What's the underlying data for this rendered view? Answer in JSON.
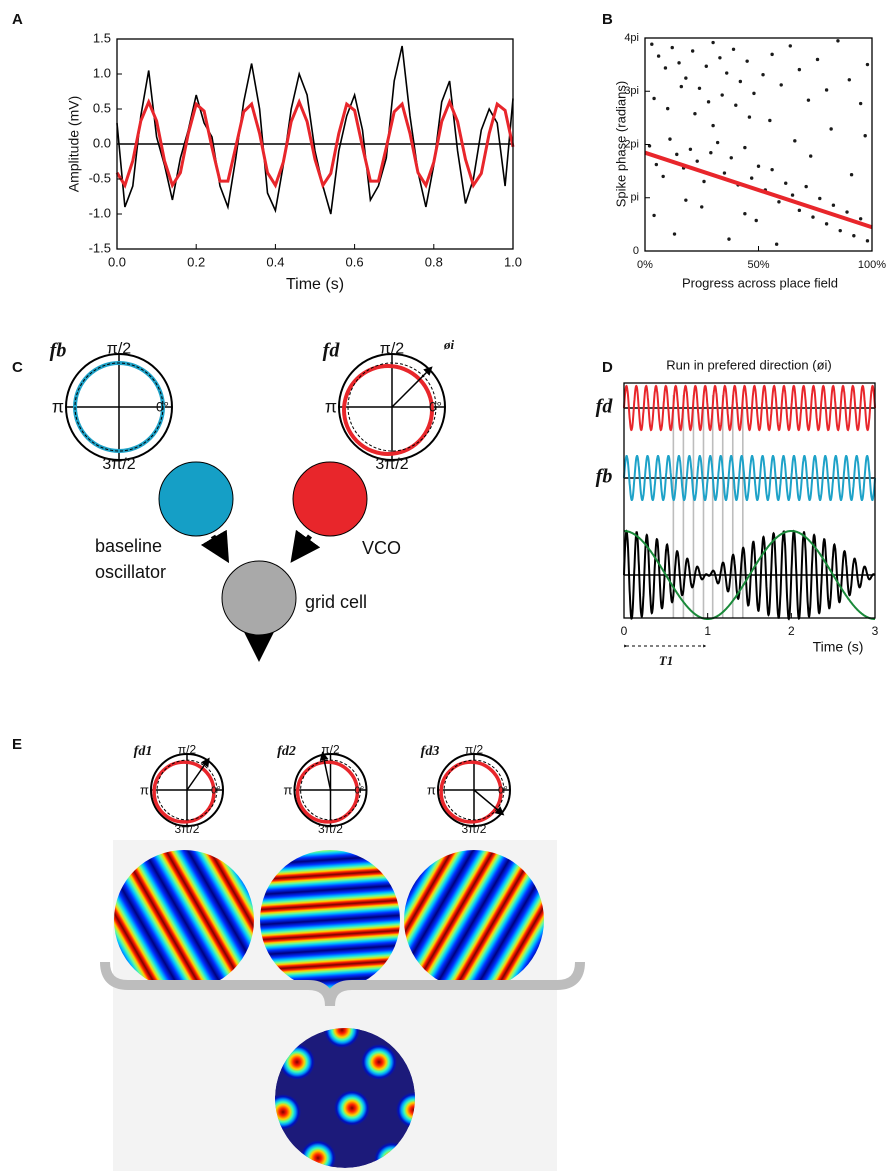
{
  "chart_data": [
    {
      "type": "line",
      "label": "A",
      "ylabel": "Amplitude (mV)",
      "xlabel": "Time (s)",
      "x": [
        0,
        0.02,
        0.04,
        0.06,
        0.08,
        0.1,
        0.12,
        0.14,
        0.16,
        0.18,
        0.2,
        0.22,
        0.24,
        0.26,
        0.28,
        0.3,
        0.32,
        0.34,
        0.36,
        0.38,
        0.4,
        0.42,
        0.44,
        0.46,
        0.48,
        0.5,
        0.52,
        0.54,
        0.56,
        0.58,
        0.6,
        0.62,
        0.64,
        0.66,
        0.68,
        0.7,
        0.72,
        0.74,
        0.76,
        0.78,
        0.8,
        0.82,
        0.84,
        0.86,
        0.88,
        0.9,
        0.92,
        0.94,
        0.96,
        0.98,
        1
      ],
      "series": [
        {
          "color": "#000000",
          "values": [
            0.3,
            -0.9,
            -0.6,
            0.4,
            1.05,
            0.1,
            -0.3,
            -0.8,
            -0.2,
            0.2,
            0.7,
            0.3,
            0.1,
            -0.6,
            -0.9,
            -0.2,
            0.6,
            1.15,
            0.5,
            -0.7,
            -0.95,
            -0.3,
            0.5,
            1.0,
            0.7,
            -0.1,
            -0.6,
            -1.0,
            -0.1,
            0.4,
            0.7,
            0.2,
            -0.8,
            -0.6,
            -0.2,
            0.9,
            1.4,
            0.4,
            -0.4,
            -0.9,
            -0.3,
            0.6,
            0.9,
            -0.1,
            -0.85,
            -0.5,
            0.2,
            0.5,
            0.3,
            -0.6,
            0.65
          ]
        },
        {
          "color": "#e8262b",
          "values": [
            -0.41,
            -0.59,
            -0.24,
            0.33,
            0.6,
            0.33,
            -0.24,
            -0.59,
            -0.41,
            0.15,
            0.57,
            0.47,
            -0.05,
            -0.53,
            -0.53,
            -0.04,
            0.46,
            0.57,
            0.15,
            -0.41,
            -0.59,
            -0.26,
            0.32,
            0.6,
            0.32,
            -0.22,
            -0.59,
            -0.42,
            0.15,
            0.57,
            0.48,
            -0.04,
            -0.53,
            -0.53,
            -0.05,
            0.46,
            0.57,
            0.15,
            -0.41,
            -0.59,
            -0.26,
            0.32,
            0.6,
            0.32,
            -0.22,
            -0.59,
            -0.42,
            0.15,
            0.57,
            0.48,
            -0.04
          ]
        }
      ],
      "xlim": [
        0,
        1
      ],
      "xticks": [
        {
          "value": 0,
          "label": "0.0"
        },
        0.2,
        0.4,
        0.6,
        0.8,
        {
          "value": 1,
          "label": "1.0"
        }
      ],
      "ylim": [
        -1.5,
        1.5
      ],
      "yticks": [
        -1.5,
        {
          "value": -1,
          "label": "-1.0"
        },
        -0.5,
        {
          "value": 0,
          "label": "0.0"
        },
        0.5,
        {
          "value": 1,
          "label": "1.0"
        },
        1.5
      ]
    },
    {
      "type": "scatter",
      "label": "B",
      "ylabel": "Spike phase (radians)",
      "xlabel": "Progress across place field",
      "color": "#1a1a1a",
      "x": [
        3,
        6,
        9,
        12,
        15,
        18,
        21,
        24,
        27,
        30,
        33,
        36,
        39,
        42,
        45,
        48,
        4,
        10,
        16,
        22,
        28,
        34,
        40,
        46,
        52,
        56,
        60,
        64,
        68,
        72,
        76,
        80,
        85,
        90,
        95,
        98,
        2,
        5,
        8,
        11,
        14,
        17,
        20,
        23,
        26,
        29,
        32,
        35,
        38,
        41,
        44,
        47,
        50,
        53,
        56,
        59,
        62,
        65,
        68,
        71,
        74,
        77,
        80,
        83,
        86,
        89,
        92,
        95,
        98,
        4,
        13,
        25,
        37,
        49,
        58,
        66,
        73,
        82,
        91,
        97,
        30,
        18,
        55,
        44
      ],
      "y": [
        12.2,
        11.5,
        10.8,
        12.0,
        11.1,
        10.2,
        11.8,
        9.6,
        10.9,
        12.3,
        11.4,
        10.5,
        11.9,
        10.0,
        11.2,
        9.3,
        9.0,
        8.4,
        9.7,
        8.1,
        8.8,
        9.2,
        8.6,
        7.9,
        10.4,
        11.6,
        9.8,
        12.1,
        10.7,
        8.9,
        11.3,
        9.5,
        12.4,
        10.1,
        8.7,
        11.0,
        6.2,
        5.1,
        4.4,
        6.6,
        5.7,
        4.9,
        6.0,
        5.3,
        4.1,
        5.8,
        6.4,
        4.6,
        5.5,
        3.9,
        6.1,
        4.3,
        5.0,
        3.6,
        4.8,
        2.9,
        4.0,
        3.3,
        2.4,
        3.8,
        2.0,
        3.1,
        1.6,
        2.7,
        1.2,
        2.3,
        0.9,
        1.9,
        0.6,
        2.1,
        1.0,
        2.6,
        0.7,
        1.8,
        0.4,
        6.5,
        5.6,
        7.2,
        4.5,
        6.8,
        7.4,
        3.0,
        7.7,
        2.2
      ],
      "fit": {
        "color": "#e8262b",
        "x": [
          0,
          100
        ],
        "y": [
          5.8,
          1.4
        ]
      },
      "xlim": [
        0,
        100
      ],
      "xticks": [
        {
          "value": 0,
          "label": "0%"
        },
        {
          "value": 50,
          "label": "50%"
        },
        {
          "value": 100,
          "label": "100%"
        }
      ],
      "ylim": [
        0,
        12.5664
      ],
      "yticks": [
        0,
        {
          "value": 3.1416,
          "label": "pi"
        },
        {
          "value": 6.2832,
          "label": "2pi"
        },
        {
          "value": 9.4248,
          "label": "3pi"
        },
        {
          "value": 12.5664,
          "label": "4pi"
        }
      ]
    },
    {
      "type": "signal",
      "label": "D",
      "title": "Run in prefered direction (øi)",
      "xlabel": "Time (s)",
      "annotation": "T1",
      "series": [
        {
          "name": "fd",
          "color": "#e8262b",
          "frequency": 8.5
        },
        {
          "name": "fb",
          "color": "#1ea2c8",
          "frequency": 8
        }
      ],
      "interference_color": "#000000",
      "envelope_color": "#1a8a3a",
      "highlight_times": [
        0.59,
        0.71,
        0.83,
        0.95,
        1.06,
        1.18,
        1.3,
        1.42
      ],
      "xlim": [
        0,
        3
      ],
      "xticks": [
        0,
        1,
        2,
        3
      ]
    }
  ],
  "panel_c": {
    "label": "C",
    "dials": [
      {
        "name": "fb",
        "color": "#1ea2c8",
        "top": "π/2",
        "left": "π",
        "right": "0°",
        "bottom": "3π/2"
      },
      {
        "name": "fd",
        "color": "#e8262b",
        "top": "π/2",
        "left": "π",
        "right": "0°",
        "bottom": "3π/2",
        "arrow_label": "øi"
      }
    ],
    "nodes": [
      {
        "label": [
          "baseline",
          "oscillator"
        ],
        "color": "#159fc6"
      },
      {
        "label": [
          "VCO"
        ],
        "color": "#e8262b"
      },
      {
        "label": [
          "grid cell"
        ],
        "color": "#a9a9a9"
      }
    ]
  },
  "panel_e": {
    "label": "E",
    "dials": [
      {
        "name": "fd1",
        "top": "π/2",
        "left": "π",
        "right": "0°",
        "bottom": "3π/2"
      },
      {
        "name": "fd2",
        "top": "π/2",
        "left": "π",
        "right": "0°",
        "bottom": "3π/2"
      },
      {
        "name": "fd3",
        "top": "π/2",
        "left": "π",
        "right": "0°",
        "bottom": "3π/2"
      }
    ]
  }
}
